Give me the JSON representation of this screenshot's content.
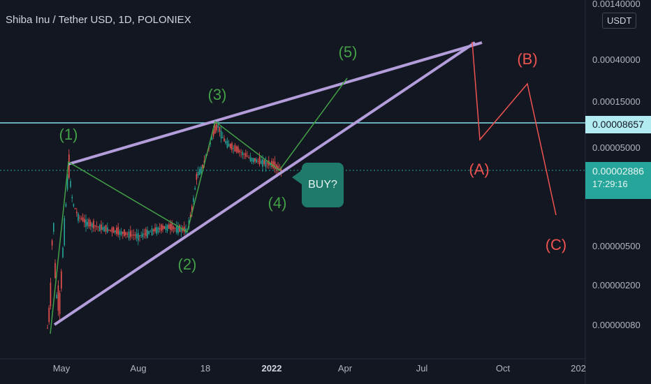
{
  "header": {
    "title": "Shiba Inu / Tether USD, 1D, POLONIEX",
    "currency_label": "USDT"
  },
  "price_tags": {
    "level": "0.00008657",
    "last": "0.00002886",
    "countdown": "17:29:16"
  },
  "callout": {
    "text": "BUY?"
  },
  "colors": {
    "background": "#131722",
    "up": "#26a69a",
    "down": "#ef5350",
    "wave": "#43a047",
    "corrective": "#ef5350",
    "channel": "#b39ddb",
    "level_line": "#80deea"
  },
  "chart_data": {
    "type": "line",
    "log_scale": true,
    "grid": false,
    "x_ticks": [
      "May",
      "Aug",
      "18",
      "2022",
      "Apr",
      "Jul",
      "Oct",
      "202"
    ],
    "y_ticks": [
      "0.00140000",
      "0.00040000",
      "0.00015000",
      "0.00005000",
      "0.00000500",
      "0.00000200",
      "0.00000080"
    ],
    "horizontal_level": 8.657e-05,
    "last_price": 2.886e-05,
    "impulse_wave_labels": [
      "(1)",
      "(2)",
      "(3)",
      "(4)",
      "(5)"
    ],
    "corrective_wave_labels": [
      "(A)",
      "(B)",
      "(C)"
    ]
  }
}
